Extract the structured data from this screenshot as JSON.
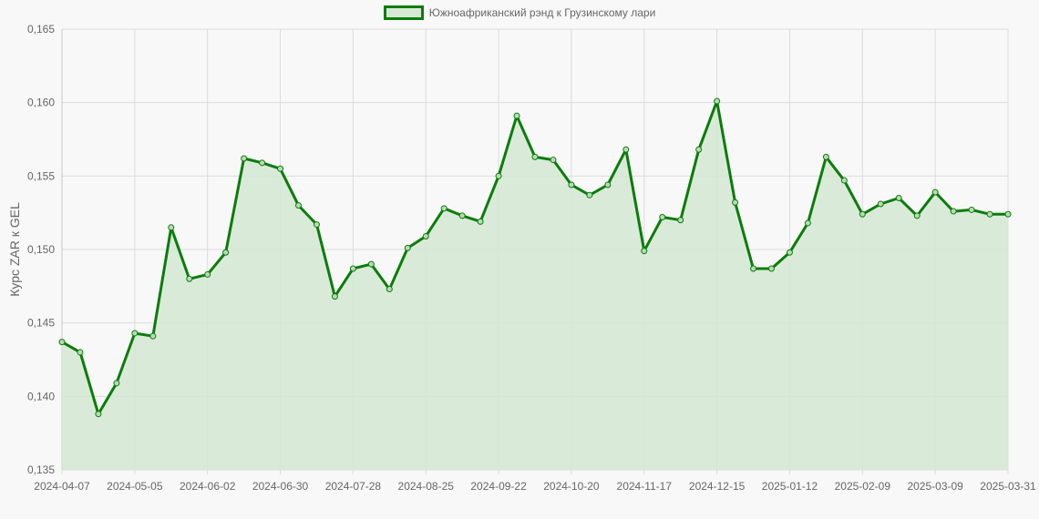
{
  "legend": {
    "label": "Южноафриканский рэнд к Грузинскому лари",
    "color": "#0a7d0a",
    "fill": "#d5e8d4"
  },
  "axis": {
    "ylabel": "Курс ZAR к GEL"
  },
  "chart_data": {
    "type": "line",
    "title": "",
    "xlabel": "",
    "ylabel": "Курс ZAR к GEL",
    "ylim": [
      0.135,
      0.165
    ],
    "yticks": [
      "0,135",
      "0,140",
      "0,145",
      "0,150",
      "0,155",
      "0,160",
      "0,165"
    ],
    "xticks": [
      "2024-04-07",
      "2024-05-05",
      "2024-06-02",
      "2024-06-30",
      "2024-07-28",
      "2024-08-25",
      "2024-09-22",
      "2024-10-20",
      "2024-11-17",
      "2024-12-15",
      "2025-01-12",
      "2025-02-09",
      "2025-03-09",
      "2025-03-31"
    ],
    "grid": true,
    "legend_position": "top",
    "series": [
      {
        "name": "Южноафриканский рэнд к Грузинскому лари",
        "color": "#0a7d0a",
        "fill": "#d5e8d4",
        "values": [
          0.1437,
          0.143,
          0.1388,
          0.1409,
          0.1443,
          0.1441,
          0.1515,
          0.148,
          0.1483,
          0.1498,
          0.1562,
          0.1559,
          0.1555,
          0.153,
          0.1517,
          0.1468,
          0.1487,
          0.149,
          0.1473,
          0.1501,
          0.1509,
          0.1528,
          0.1523,
          0.1519,
          0.155,
          0.1591,
          0.1563,
          0.1561,
          0.1544,
          0.1537,
          0.1544,
          0.1568,
          0.1499,
          0.1522,
          0.152,
          0.1568,
          0.1601,
          0.1532,
          0.1487,
          0.1487,
          0.1498,
          0.1518,
          0.1563,
          0.1547,
          0.1524,
          0.1531,
          0.1535,
          0.1523,
          0.1539,
          0.1526,
          0.1527,
          0.1524,
          0.1524
        ]
      }
    ]
  }
}
